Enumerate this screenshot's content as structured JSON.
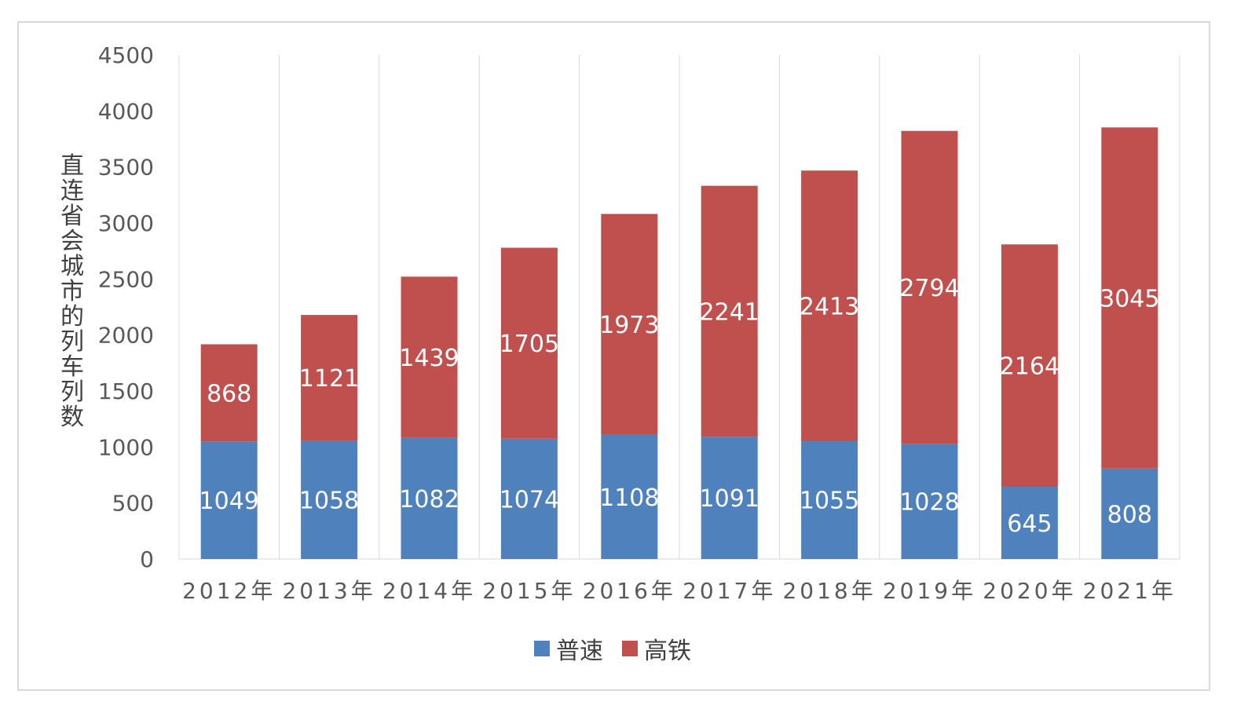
{
  "chart_data": {
    "type": "bar",
    "stacked": true,
    "categories": [
      "2012年",
      "2013年",
      "2014年",
      "2015年",
      "2016年",
      "2017年",
      "2018年",
      "2019年",
      "2020年",
      "2021年"
    ],
    "series": [
      {
        "name": "普速",
        "color": "#4f81bd",
        "values": [
          1049,
          1058,
          1082,
          1074,
          1108,
          1091,
          1055,
          1028,
          645,
          808
        ]
      },
      {
        "name": "高铁",
        "color": "#c0504d",
        "values": [
          868,
          1121,
          1439,
          1705,
          1973,
          2241,
          2413,
          2794,
          2164,
          3045
        ]
      }
    ],
    "ylabel": "直连省会城市的列车列数",
    "xlabel": "",
    "ylim": [
      0,
      4500
    ],
    "yticks": [
      0,
      500,
      1000,
      1500,
      2000,
      2500,
      3000,
      3500,
      4000,
      4500
    ],
    "grid": "vertical",
    "legend": "bottom"
  }
}
